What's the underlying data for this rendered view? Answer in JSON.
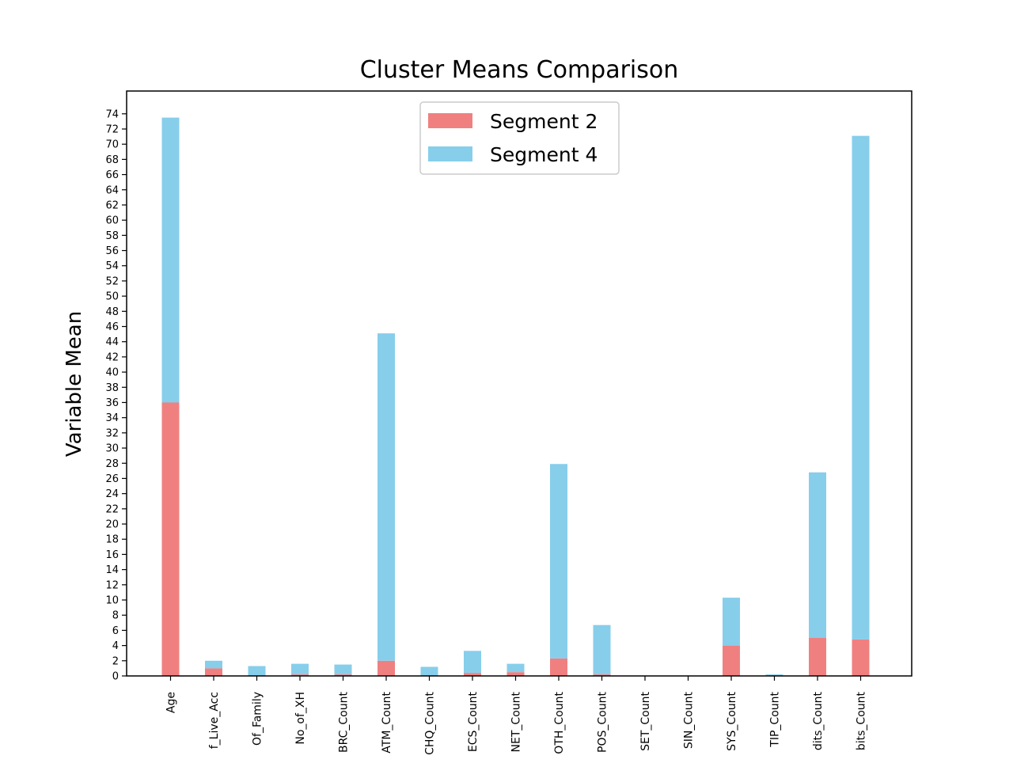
{
  "chart_data": {
    "type": "bar",
    "stacked": true,
    "title": "Cluster Means Comparison",
    "xlabel": "",
    "ylabel": "Variable Mean",
    "ylim": [
      0,
      77
    ],
    "yticks": [
      0,
      2,
      4,
      6,
      8,
      10,
      12,
      14,
      16,
      18,
      20,
      22,
      24,
      26,
      28,
      30,
      32,
      34,
      36,
      38,
      40,
      42,
      44,
      46,
      48,
      50,
      52,
      54,
      56,
      58,
      60,
      62,
      64,
      66,
      68,
      70,
      72,
      74
    ],
    "grid": false,
    "legend": "top-center",
    "categories": [
      "Age",
      "f_Live_Acc",
      "Of_Family",
      "No_of_XH",
      "BRC_Count",
      "ATM_Count",
      "CHQ_Count",
      "ECS_Count",
      "NET_Count",
      "OTH_Count",
      "POS_Count",
      "SET_Count",
      "SIN_Count",
      "SYS_Count",
      "TIP_Count",
      "dits_Count",
      "bits_Count"
    ],
    "series": [
      {
        "name": "Segment 2",
        "color": "#f08080",
        "values": [
          36.0,
          1.0,
          0.1,
          0.2,
          0.2,
          2.0,
          0.1,
          0.4,
          0.5,
          2.3,
          0.2,
          0.0,
          0.0,
          4.0,
          0.0,
          5.0,
          4.8
        ]
      },
      {
        "name": "Segment 4",
        "color": "#87ceeb",
        "values": [
          37.5,
          1.0,
          1.2,
          1.4,
          1.3,
          43.1,
          1.1,
          2.9,
          1.1,
          25.6,
          6.5,
          0.0,
          0.0,
          6.3,
          0.2,
          21.8,
          66.3
        ]
      }
    ]
  }
}
